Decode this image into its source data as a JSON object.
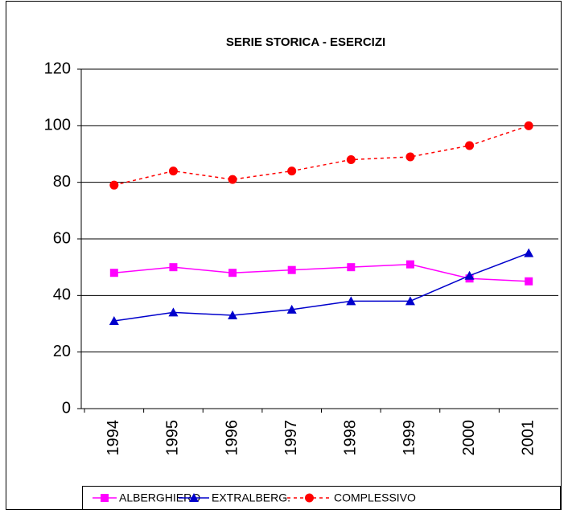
{
  "chart_data": {
    "type": "line",
    "title": "SERIE STORICA - ESERCIZI",
    "categories": [
      "1994",
      "1995",
      "1996",
      "1997",
      "1998",
      "1999",
      "2000",
      "2001"
    ],
    "series": [
      {
        "name": "ALBERGHIERO",
        "color": "#ff00ff",
        "marker": "square",
        "dashed": false,
        "values": [
          48,
          50,
          48,
          49,
          50,
          51,
          46,
          45
        ]
      },
      {
        "name": "EXTRALBERG.",
        "color": "#0000cc",
        "marker": "triangle",
        "dashed": false,
        "values": [
          31,
          34,
          33,
          35,
          38,
          38,
          47,
          55
        ]
      },
      {
        "name": "COMPLESSIVO",
        "color": "#ff0000",
        "marker": "circle",
        "dashed": true,
        "values": [
          79,
          84,
          81,
          84,
          88,
          89,
          93,
          100
        ]
      }
    ],
    "ylim": [
      0,
      120
    ],
    "yticks": [
      0,
      20,
      40,
      60,
      80,
      100,
      120
    ],
    "grid": true,
    "legend": "bottom"
  }
}
